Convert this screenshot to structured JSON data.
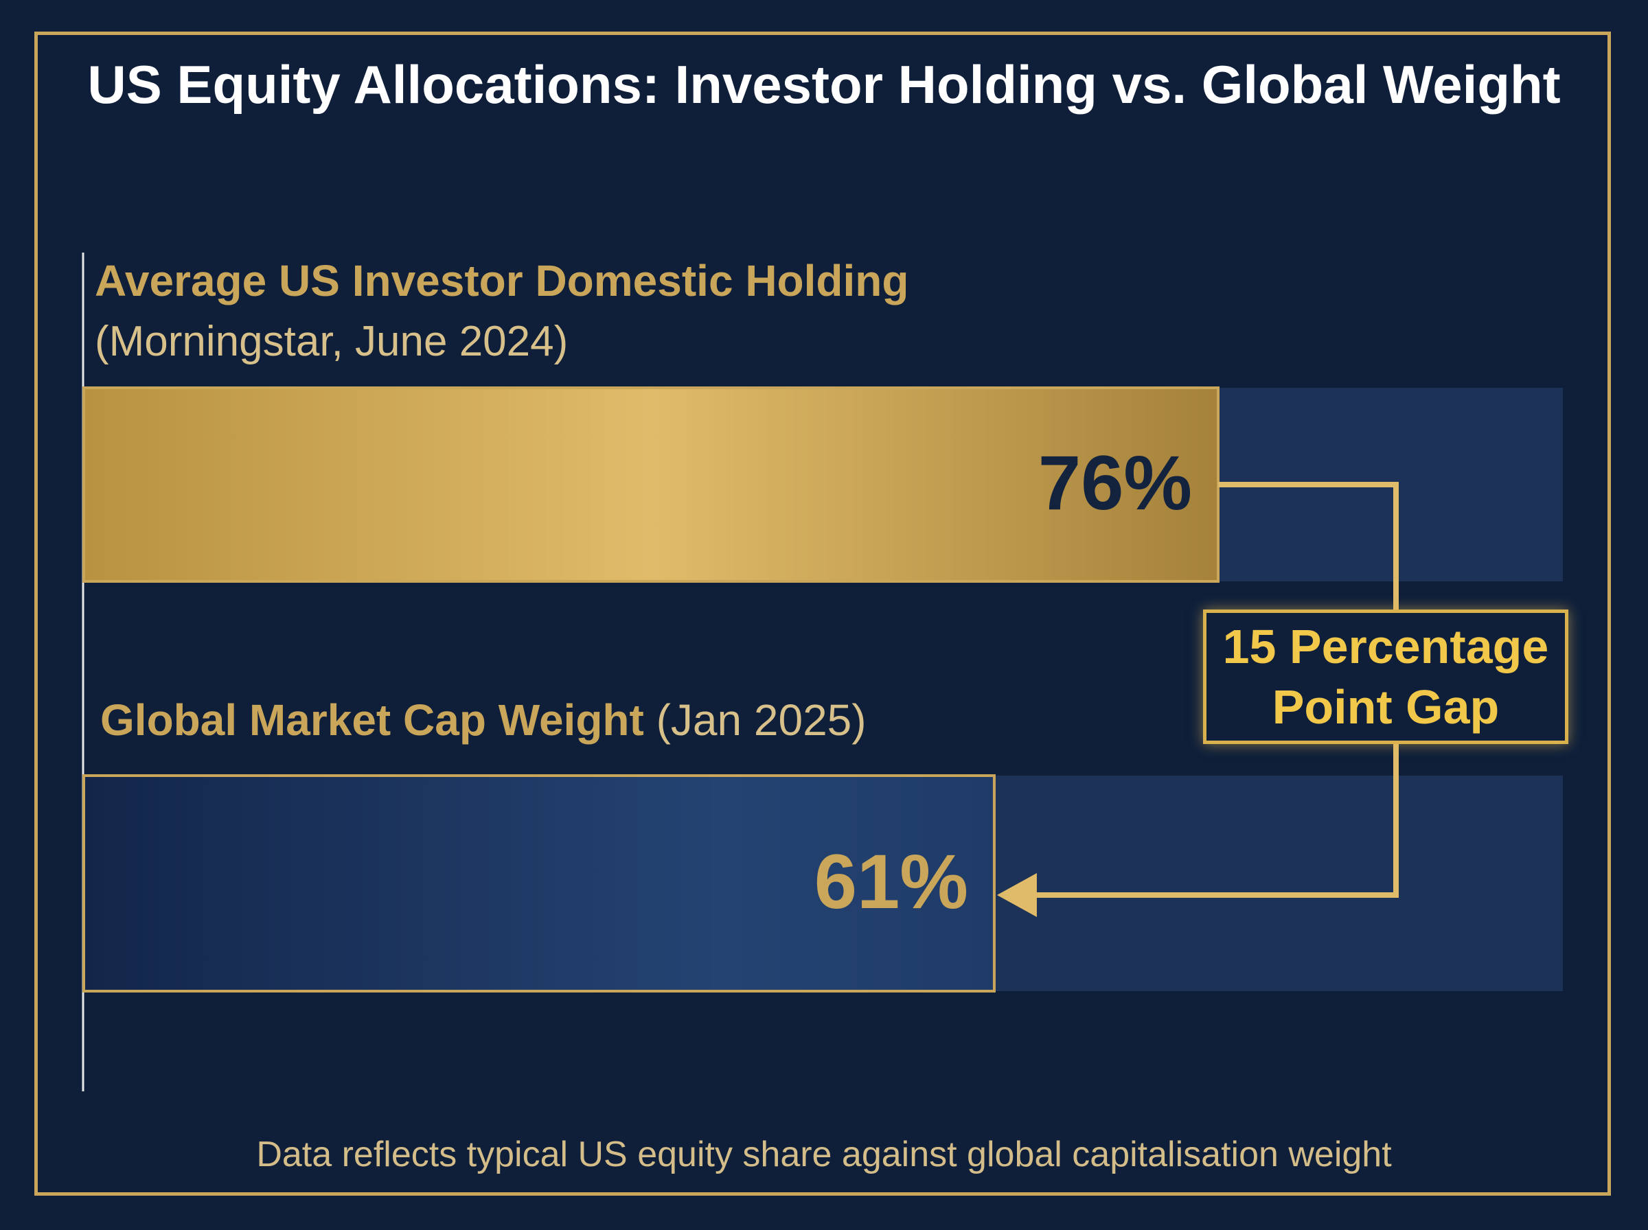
{
  "title": "US Equity Allocations: Investor Holding vs. Global Weight",
  "footnote": "Data reflects typical US equity share against global capitalisation weight",
  "colors": {
    "background": "#0f1f3a",
    "gold": "#c9a65a",
    "gold_highlight": "#e0bb6a",
    "blue_bar": "#244372",
    "track": "#1c3256",
    "value_dark": "#14233d"
  },
  "annotation": {
    "text": "15 Percentage\nPoint Gap",
    "gap": 15
  },
  "chart_data": {
    "type": "bar",
    "orientation": "horizontal",
    "title": "US Equity Allocations: Investor Holding vs. Global Weight",
    "xlim": [
      0,
      100
    ],
    "grid": false,
    "legend": "none",
    "categories": [
      "Average US Investor Domestic Holding",
      "Global Market Cap Weight"
    ],
    "category_notes": [
      "(Morningstar, June 2024)",
      "(Jan 2025)"
    ],
    "values": [
      76,
      61
    ],
    "value_labels": [
      "76%",
      "61%"
    ],
    "unit": "%"
  }
}
